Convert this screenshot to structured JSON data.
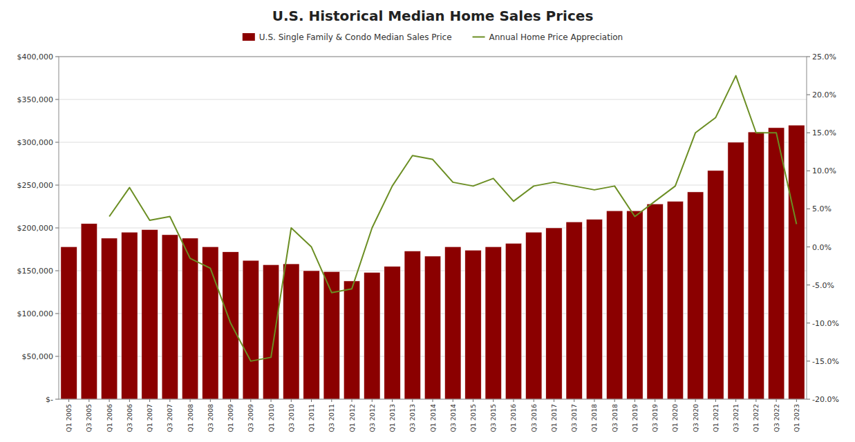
{
  "chart_data": {
    "type": "bar",
    "title": "U.S. Historical Median Home Sales Prices",
    "categories": [
      "Q1 2005",
      "Q3 2005",
      "Q1 2006",
      "Q3 2006",
      "Q1 2007",
      "Q3 2007",
      "Q1 2008",
      "Q3 2008",
      "Q1 2009",
      "Q3 2009",
      "Q1 2010",
      "Q3 2010",
      "Q1 2011",
      "Q3 2011",
      "Q1 2012",
      "Q3 2012",
      "Q1 2013",
      "Q3 2013",
      "Q1 2014",
      "Q3 2014",
      "Q1 2015",
      "Q3 2015",
      "Q1 2016",
      "Q3 2016",
      "Q1 2017",
      "Q3 2017",
      "Q1 2018",
      "Q3 2018",
      "Q1 2019",
      "Q3 2019",
      "Q1 2020",
      "Q3 2020",
      "Q1 2021",
      "Q3 2021",
      "Q1 2022",
      "Q3 2022",
      "Q1 2023"
    ],
    "series": [
      {
        "name": "U.S. Single Family & Condo Median Sales Price",
        "type": "bar",
        "color": "#8B0000",
        "values": [
          178000,
          205000,
          188000,
          195000,
          198000,
          192000,
          188000,
          178000,
          172000,
          162000,
          157000,
          158000,
          150000,
          149000,
          138000,
          148000,
          155000,
          173000,
          167000,
          178000,
          174000,
          178000,
          182000,
          195000,
          200000,
          207000,
          210000,
          220000,
          220000,
          228000,
          231000,
          242000,
          267000,
          300000,
          312000,
          317000,
          320000
        ]
      },
      {
        "name": "Annual Home Price Appreciation",
        "type": "line",
        "axis": "y2",
        "color": "#6B8E23",
        "values": [
          null,
          null,
          0.04,
          0.078,
          0.035,
          0.04,
          -0.015,
          -0.028,
          -0.1,
          -0.15,
          -0.145,
          0.025,
          0.0,
          -0.06,
          -0.055,
          0.025,
          0.08,
          0.12,
          0.115,
          0.085,
          0.08,
          0.09,
          0.06,
          0.08,
          0.085,
          0.08,
          0.075,
          0.08,
          0.04,
          0.06,
          0.08,
          0.15,
          0.17,
          0.225,
          0.15,
          0.15,
          0.03
        ]
      }
    ],
    "ylim": [
      0,
      400000
    ],
    "yticks": [
      {
        "value": 0,
        "label": "$-"
      },
      {
        "value": 50000,
        "label": "$50,000"
      },
      {
        "value": 100000,
        "label": "$100,000"
      },
      {
        "value": 150000,
        "label": "$150,000"
      },
      {
        "value": 200000,
        "label": "$200,000"
      },
      {
        "value": 250000,
        "label": "$250,000"
      },
      {
        "value": 300000,
        "label": "$300,000"
      },
      {
        "value": 350000,
        "label": "$350,000"
      },
      {
        "value": 400000,
        "label": "$400,000"
      }
    ],
    "y2lim": [
      -0.2,
      0.25
    ],
    "y2ticks": [
      {
        "value": -0.2,
        "label": "-20.0%"
      },
      {
        "value": -0.15,
        "label": "-15.0%"
      },
      {
        "value": -0.1,
        "label": "-10.0%"
      },
      {
        "value": -0.05,
        "label": "-5.0%"
      },
      {
        "value": 0.0,
        "label": "0.0%"
      },
      {
        "value": 0.05,
        "label": "5.0%"
      },
      {
        "value": 0.1,
        "label": "10.0%"
      },
      {
        "value": 0.15,
        "label": "15.0%"
      },
      {
        "value": 0.2,
        "label": "20.0%"
      },
      {
        "value": 0.25,
        "label": "25.0%"
      }
    ],
    "grid": true,
    "legend": "top"
  }
}
